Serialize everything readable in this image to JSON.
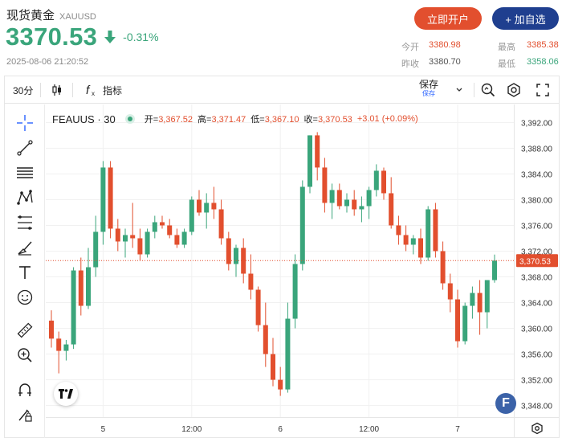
{
  "header": {
    "title": "现货黄金",
    "symbol": "XAUUSD",
    "price": "3370.53",
    "change": "-0.31%",
    "timestamp": "2025-08-06 21:20:52",
    "open_account_label": "立即开户",
    "add_watch_label": "+ 加自选"
  },
  "stats": {
    "today_open_label": "今开",
    "today_open": "3380.98",
    "prev_close_label": "昨收",
    "prev_close": "3380.70",
    "high_label": "最高",
    "high": "3385.38",
    "low_label": "最低",
    "low": "3358.06"
  },
  "toolbar": {
    "interval": "30分",
    "indicators_label": "指标",
    "save_label": "保存",
    "save_sub": "保存"
  },
  "legend": {
    "symbol": "FEAUUS · 30",
    "open_label": "开=",
    "open": "3,367.52",
    "high_label": "高=",
    "high": "3,371.47",
    "low_label": "低=",
    "low": "3,367.10",
    "close_label": "收=",
    "close": "3,370.53",
    "change": "+3.01 (+0.09%)"
  },
  "colors": {
    "up": "#3aa57b",
    "down": "#e24f2e",
    "brand_red": "#e24f2e",
    "brand_blue": "#1f3f8f"
  },
  "chart_data": {
    "type": "candlestick",
    "y_ticks": [
      "3,392.00",
      "3,388.00",
      "3,384.00",
      "3,380.00",
      "3,376.00",
      "3,372.00",
      "3,368.00",
      "3,364.00",
      "3,360.00",
      "3,356.00",
      "3,352.00",
      "3,348.00"
    ],
    "ylim": [
      3346.2,
      3394.8
    ],
    "x_ticks": [
      {
        "label": "5",
        "index": 7
      },
      {
        "label": "12:00",
        "index": 19
      },
      {
        "label": "6",
        "index": 31
      },
      {
        "label": "12:00",
        "index": 43
      },
      {
        "label": "7",
        "index": 55
      }
    ],
    "last_price_label": "3,370.53",
    "last_price": 3370.53,
    "candles": [
      [
        3361.2,
        3362.8,
        3357.0,
        3358.4
      ],
      [
        3358.4,
        3359.5,
        3353.0,
        3356.5
      ],
      [
        3356.5,
        3358.2,
        3355.0,
        3357.5
      ],
      [
        3357.5,
        3369.5,
        3356.8,
        3369.0
      ],
      [
        3369.0,
        3371.0,
        3362.0,
        3363.5
      ],
      [
        3363.5,
        3372.5,
        3363.0,
        3369.5
      ],
      [
        3369.5,
        3377.5,
        3368.0,
        3375.0
      ],
      [
        3375.0,
        3386.0,
        3373.0,
        3385.0
      ],
      [
        3385.0,
        3386.0,
        3374.0,
        3375.5
      ],
      [
        3375.5,
        3377.0,
        3372.0,
        3373.5
      ],
      [
        3373.5,
        3375.5,
        3371.0,
        3374.5
      ],
      [
        3374.5,
        3379.5,
        3372.5,
        3374.0
      ],
      [
        3374.0,
        3375.5,
        3370.5,
        3371.5
      ],
      [
        3371.5,
        3375.5,
        3371.0,
        3375.0
      ],
      [
        3375.0,
        3377.5,
        3374.0,
        3376.5
      ],
      [
        3376.5,
        3377.5,
        3375.5,
        3376.0
      ],
      [
        3376.0,
        3377.0,
        3374.0,
        3374.5
      ],
      [
        3374.5,
        3375.5,
        3372.5,
        3373.0
      ],
      [
        3373.0,
        3375.5,
        3372.5,
        3375.0
      ],
      [
        3375.0,
        3380.5,
        3374.5,
        3380.0
      ],
      [
        3380.0,
        3381.5,
        3377.5,
        3378.0
      ],
      [
        3378.0,
        3381.0,
        3375.5,
        3379.5
      ],
      [
        3379.5,
        3382.0,
        3377.0,
        3378.5
      ],
      [
        3378.5,
        3380.0,
        3373.0,
        3374.0
      ],
      [
        3374.0,
        3375.0,
        3369.0,
        3370.0
      ],
      [
        3370.0,
        3373.0,
        3368.0,
        3372.5
      ],
      [
        3372.5,
        3374.0,
        3367.0,
        3368.5
      ],
      [
        3368.5,
        3371.5,
        3364.5,
        3366.0
      ],
      [
        3366.0,
        3366.5,
        3359.5,
        3360.5
      ],
      [
        3360.5,
        3364.0,
        3354.0,
        3356.0
      ],
      [
        3356.0,
        3358.5,
        3351.0,
        3352.0
      ],
      [
        3352.0,
        3354.0,
        3349.5,
        3350.5
      ],
      [
        3350.5,
        3364.0,
        3350.0,
        3361.5
      ],
      [
        3361.5,
        3371.5,
        3360.0,
        3370.0
      ],
      [
        3370.0,
        3383.0,
        3369.0,
        3382.0
      ],
      [
        3382.0,
        3390.0,
        3381.0,
        3390.0
      ],
      [
        3390.0,
        3390.5,
        3383.0,
        3385.0
      ],
      [
        3385.0,
        3386.5,
        3378.0,
        3379.5
      ],
      [
        3379.5,
        3382.5,
        3377.0,
        3381.5
      ],
      [
        3381.5,
        3382.5,
        3378.5,
        3379.0
      ],
      [
        3379.0,
        3381.0,
        3378.0,
        3380.0
      ],
      [
        3380.0,
        3381.5,
        3377.5,
        3378.5
      ],
      [
        3378.5,
        3380.5,
        3376.5,
        3379.0
      ],
      [
        3379.0,
        3382.0,
        3377.0,
        3381.5
      ],
      [
        3381.5,
        3385.5,
        3380.5,
        3384.5
      ],
      [
        3384.5,
        3385.0,
        3380.0,
        3381.0
      ],
      [
        3381.0,
        3383.5,
        3375.5,
        3376.0
      ],
      [
        3376.0,
        3377.5,
        3373.0,
        3374.5
      ],
      [
        3374.5,
        3376.0,
        3372.0,
        3373.0
      ],
      [
        3373.0,
        3374.5,
        3371.5,
        3374.0
      ],
      [
        3374.0,
        3375.5,
        3370.0,
        3371.0
      ],
      [
        3371.0,
        3379.0,
        3370.5,
        3378.5
      ],
      [
        3378.5,
        3379.5,
        3371.0,
        3372.0
      ],
      [
        3372.0,
        3373.5,
        3366.0,
        3367.0
      ],
      [
        3367.0,
        3368.5,
        3362.5,
        3364.5
      ],
      [
        3364.5,
        3366.0,
        3357.0,
        3358.0
      ],
      [
        3358.0,
        3364.0,
        3357.5,
        3363.5
      ],
      [
        3363.5,
        3366.5,
        3361.5,
        3365.5
      ],
      [
        3365.5,
        3367.5,
        3359.0,
        3362.5
      ],
      [
        3362.5,
        3367.5,
        3360.0,
        3367.5
      ],
      [
        3367.5,
        3371.47,
        3367.1,
        3370.53
      ]
    ]
  }
}
